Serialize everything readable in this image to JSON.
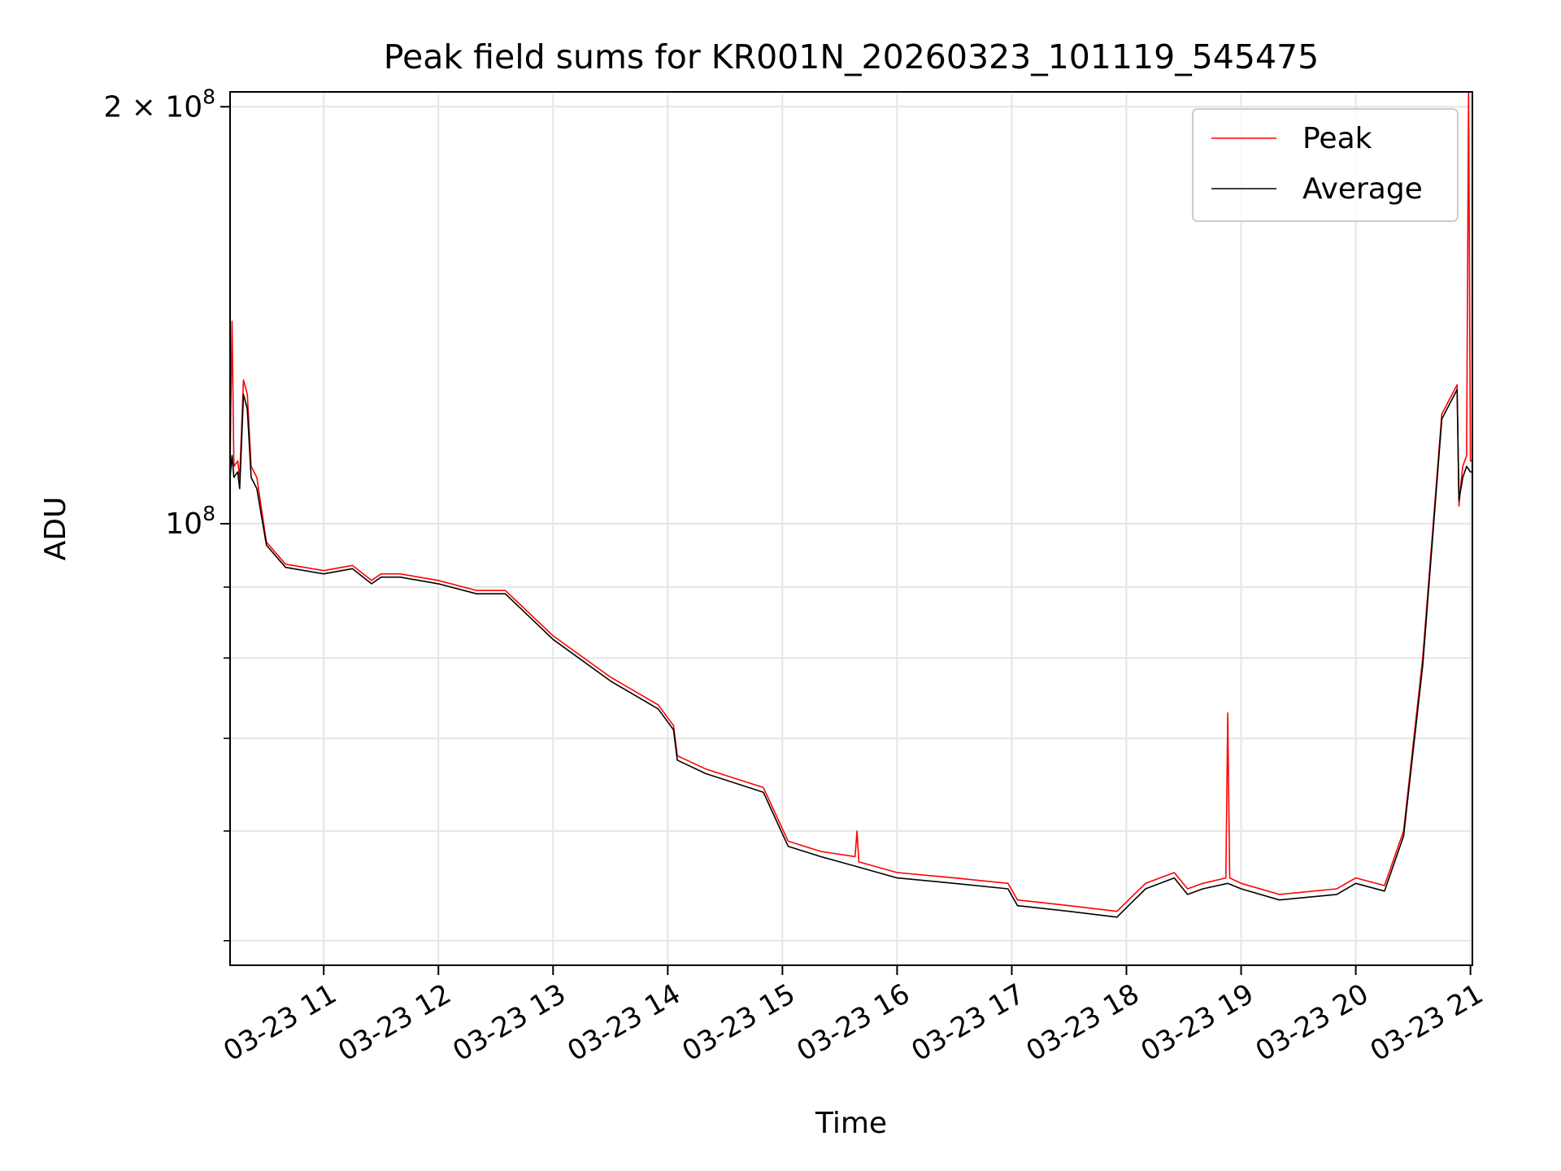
{
  "chart_data": {
    "type": "line",
    "title": "Peak field sums for KR001N_20260323_101119_545475",
    "xlabel": "Time",
    "ylabel": "ADU",
    "yscale": "log",
    "ylim": [
      48000000,
      205000000
    ],
    "xlim": [
      "2026-03-23 10:11",
      "2026-03-23 21:01"
    ],
    "grid": true,
    "legend_position": "top-right",
    "x_ticks": [
      {
        "value": "2026-03-23 11:00",
        "label": "03-23 11"
      },
      {
        "value": "2026-03-23 12:00",
        "label": "03-23 12"
      },
      {
        "value": "2026-03-23 13:00",
        "label": "03-23 13"
      },
      {
        "value": "2026-03-23 14:00",
        "label": "03-23 14"
      },
      {
        "value": "2026-03-23 15:00",
        "label": "03-23 15"
      },
      {
        "value": "2026-03-23 16:00",
        "label": "03-23 16"
      },
      {
        "value": "2026-03-23 17:00",
        "label": "03-23 17"
      },
      {
        "value": "2026-03-23 18:00",
        "label": "03-23 18"
      },
      {
        "value": "2026-03-23 19:00",
        "label": "03-23 19"
      },
      {
        "value": "2026-03-23 20:00",
        "label": "03-23 20"
      },
      {
        "value": "2026-03-23 21:00",
        "label": "03-23 21"
      }
    ],
    "y_ticks": [
      {
        "value": 100000000,
        "mantissa": "",
        "exponent": "8"
      },
      {
        "value": 200000000,
        "mantissa": "2",
        "exponent": "8"
      }
    ],
    "series": [
      {
        "name": "Peak",
        "color": "#ff0000",
        "x": [
          "2026-03-23 10:11",
          "2026-03-23 10:12",
          "2026-03-23 10:13",
          "2026-03-23 10:15",
          "2026-03-23 10:16",
          "2026-03-23 10:18",
          "2026-03-23 10:20",
          "2026-03-23 10:22",
          "2026-03-23 10:25",
          "2026-03-23 10:30",
          "2026-03-23 10:40",
          "2026-03-23 11:00",
          "2026-03-23 11:15",
          "2026-03-23 11:25",
          "2026-03-23 11:30",
          "2026-03-23 11:40",
          "2026-03-23 12:00",
          "2026-03-23 12:20",
          "2026-03-23 12:35",
          "2026-03-23 13:00",
          "2026-03-23 13:30",
          "2026-03-23 13:55",
          "2026-03-23 14:03",
          "2026-03-23 14:05",
          "2026-03-23 14:20",
          "2026-03-23 14:50",
          "2026-03-23 15:03",
          "2026-03-23 15:20",
          "2026-03-23 15:38",
          "2026-03-23 15:39",
          "2026-03-23 15:40",
          "2026-03-23 16:00",
          "2026-03-23 16:30",
          "2026-03-23 16:58",
          "2026-03-23 17:03",
          "2026-03-23 17:30",
          "2026-03-23 17:55",
          "2026-03-23 18:10",
          "2026-03-23 18:25",
          "2026-03-23 18:32",
          "2026-03-23 18:40",
          "2026-03-23 18:52",
          "2026-03-23 18:53",
          "2026-03-23 18:54",
          "2026-03-23 19:00",
          "2026-03-23 19:20",
          "2026-03-23 19:50",
          "2026-03-23 20:00",
          "2026-03-23 20:15",
          "2026-03-23 20:25",
          "2026-03-23 20:35",
          "2026-03-23 20:45",
          "2026-03-23 20:53",
          "2026-03-23 20:54",
          "2026-03-23 20:55",
          "2026-03-23 20:56",
          "2026-03-23 20:58",
          "2026-03-23 20:59",
          "2026-03-23 21:00",
          "2026-03-23 21:01"
        ],
        "y": [
          110000000,
          140000000,
          110000000,
          111000000,
          108000000,
          127000000,
          124000000,
          110000000,
          108000000,
          97000000,
          93500000,
          92500000,
          93300000,
          91000000,
          92000000,
          92000000,
          91000000,
          89500000,
          89500000,
          83000000,
          77500000,
          74000000,
          71500000,
          68000000,
          66500000,
          64500000,
          59000000,
          58000000,
          57500000,
          60000000,
          57000000,
          56000000,
          55500000,
          55000000,
          53500000,
          53000000,
          52500000,
          55000000,
          56000000,
          54500000,
          55000000,
          55500000,
          73000000,
          55500000,
          55000000,
          54000000,
          54500000,
          55500000,
          54800000,
          60000000,
          80000000,
          120000000,
          126000000,
          103000000,
          107000000,
          110000000,
          112000000,
          205000000,
          111000000,
          111000000
        ]
      },
      {
        "name": "Average",
        "color": "#000000",
        "x": [
          "2026-03-23 10:11",
          "2026-03-23 10:12",
          "2026-03-23 10:13",
          "2026-03-23 10:15",
          "2026-03-23 10:16",
          "2026-03-23 10:18",
          "2026-03-23 10:20",
          "2026-03-23 10:22",
          "2026-03-23 10:25",
          "2026-03-23 10:30",
          "2026-03-23 10:40",
          "2026-03-23 11:00",
          "2026-03-23 11:15",
          "2026-03-23 11:25",
          "2026-03-23 11:30",
          "2026-03-23 11:40",
          "2026-03-23 12:00",
          "2026-03-23 12:20",
          "2026-03-23 12:35",
          "2026-03-23 13:00",
          "2026-03-23 13:30",
          "2026-03-23 13:55",
          "2026-03-23 14:03",
          "2026-03-23 14:05",
          "2026-03-23 14:20",
          "2026-03-23 14:50",
          "2026-03-23 15:03",
          "2026-03-23 15:20",
          "2026-03-23 15:40",
          "2026-03-23 16:00",
          "2026-03-23 16:30",
          "2026-03-23 16:58",
          "2026-03-23 17:03",
          "2026-03-23 17:30",
          "2026-03-23 17:55",
          "2026-03-23 18:10",
          "2026-03-23 18:25",
          "2026-03-23 18:32",
          "2026-03-23 18:40",
          "2026-03-23 18:53",
          "2026-03-23 19:00",
          "2026-03-23 19:20",
          "2026-03-23 19:50",
          "2026-03-23 20:00",
          "2026-03-23 20:15",
          "2026-03-23 20:25",
          "2026-03-23 20:35",
          "2026-03-23 20:45",
          "2026-03-23 20:53",
          "2026-03-23 20:54",
          "2026-03-23 20:55",
          "2026-03-23 20:56",
          "2026-03-23 20:58",
          "2026-03-23 21:00",
          "2026-03-23 21:01"
        ],
        "y": [
          108000000,
          112000000,
          108000000,
          109000000,
          106000000,
          124000000,
          121000000,
          108000000,
          106000000,
          96500000,
          93000000,
          92000000,
          92800000,
          90500000,
          91500000,
          91500000,
          90500000,
          89000000,
          89000000,
          82500000,
          77000000,
          73500000,
          71000000,
          67500000,
          66000000,
          64000000,
          58500000,
          57500000,
          56500000,
          55500000,
          55000000,
          54500000,
          53000000,
          52500000,
          52000000,
          54500000,
          55500000,
          54000000,
          54500000,
          55000000,
          54500000,
          53500000,
          54000000,
          55000000,
          54300000,
          59500000,
          79000000,
          119000000,
          125000000,
          104000000,
          106000000,
          108000000,
          110000000,
          109000000,
          109000000
        ]
      }
    ]
  }
}
